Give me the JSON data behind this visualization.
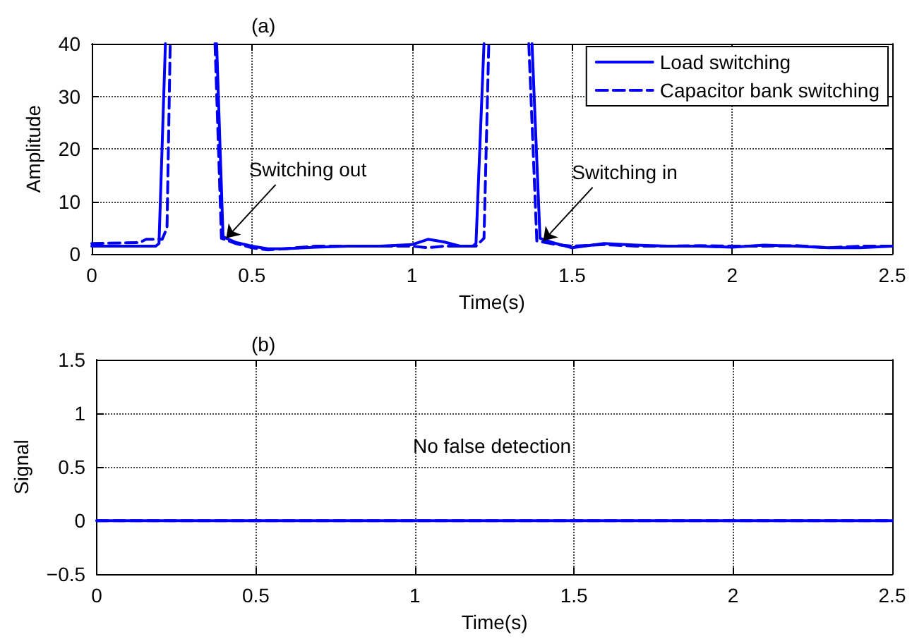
{
  "chart_data": [
    {
      "type": "line",
      "title": "(a)",
      "xlabel": "Time(s)",
      "ylabel": "Amplitude",
      "xlim": [
        0,
        2.5
      ],
      "xticks": [
        0,
        0.5,
        1,
        1.5,
        2,
        2.5
      ],
      "ylim": [
        0,
        40
      ],
      "yticks": [
        0,
        10,
        20,
        30,
        40
      ],
      "grid": true,
      "legend": "top right",
      "annotations": [
        {
          "text": "Switching out",
          "x": 0.42,
          "y": 3
        },
        {
          "text": "Switching in",
          "x": 1.41,
          "y": 2.5
        }
      ],
      "series": [
        {
          "name": "Load switching",
          "color": "#0000ff",
          "line_style": "solid",
          "x": [
            0,
            0.1,
            0.2,
            0.21,
            0.23,
            0.3,
            0.39,
            0.41,
            0.45,
            0.5,
            0.55,
            0.6,
            0.7,
            0.8,
            0.9,
            1,
            1.05,
            1.1,
            1.15,
            1.19,
            1.2,
            1.225,
            1.3,
            1.375,
            1.4,
            1.45,
            1.5,
            1.6,
            1.7,
            1.8,
            1.9,
            2,
            2.1,
            2.2,
            2.3,
            2.4,
            2.5
          ],
          "values": [
            1.5,
            1.5,
            1.5,
            2,
            40,
            null,
            40,
            3.3,
            2.2,
            1.5,
            1,
            1,
            1.3,
            1.5,
            1.5,
            1.8,
            2.8,
            2.3,
            1.5,
            1.5,
            2,
            40,
            null,
            40,
            3,
            2,
            1.2,
            2,
            1.7,
            1.5,
            1.5,
            1.3,
            1.7,
            1.5,
            1.2,
            1.2,
            1.5
          ]
        },
        {
          "name": "Capacitor bank switching",
          "color": "#0000ee",
          "line_style": "dashed",
          "x": [
            0,
            0.15,
            0.17,
            0.22,
            0.235,
            0.245,
            0.3,
            0.385,
            0.405,
            0.45,
            0.5,
            0.55,
            0.6,
            0.7,
            0.8,
            0.9,
            1,
            1.05,
            1.1,
            1.2,
            1.225,
            1.24,
            1.3,
            1.365,
            1.39,
            1.45,
            1.5,
            1.6,
            1.7,
            1.8,
            1.9,
            2,
            2.1,
            2.2,
            2.3,
            2.4,
            2.5
          ],
          "values": [
            2,
            2.2,
            2.8,
            2.8,
            5,
            40,
            null,
            40,
            3,
            2,
            1.2,
            0.8,
            1,
            1.5,
            1.5,
            1.5,
            1.5,
            1.2,
            1.5,
            1.5,
            3,
            40,
            null,
            40,
            2.5,
            1.8,
            1.5,
            1.8,
            1.5,
            1.5,
            1.6,
            1.5,
            1.5,
            1.6,
            1.2,
            1.5,
            1.5
          ]
        }
      ]
    },
    {
      "type": "line",
      "title": "(b)",
      "xlabel": "Time(s)",
      "ylabel": "Signal",
      "xlim": [
        0,
        2.5
      ],
      "xticks": [
        0,
        0.5,
        1,
        1.5,
        2,
        2.5
      ],
      "ylim": [
        -0.5,
        1.5
      ],
      "yticks": [
        -0.5,
        0,
        0.5,
        1,
        1.5
      ],
      "grid": true,
      "annotations": [
        "No false detection"
      ],
      "series": [
        {
          "color": "#0000ff",
          "line_style": "solid",
          "x": [
            0,
            2.5
          ],
          "values": [
            0,
            0
          ]
        },
        {
          "color": "#0000ff",
          "line_style": "dashed",
          "x": [
            0,
            2.5
          ],
          "values": [
            0,
            0
          ]
        }
      ]
    }
  ]
}
